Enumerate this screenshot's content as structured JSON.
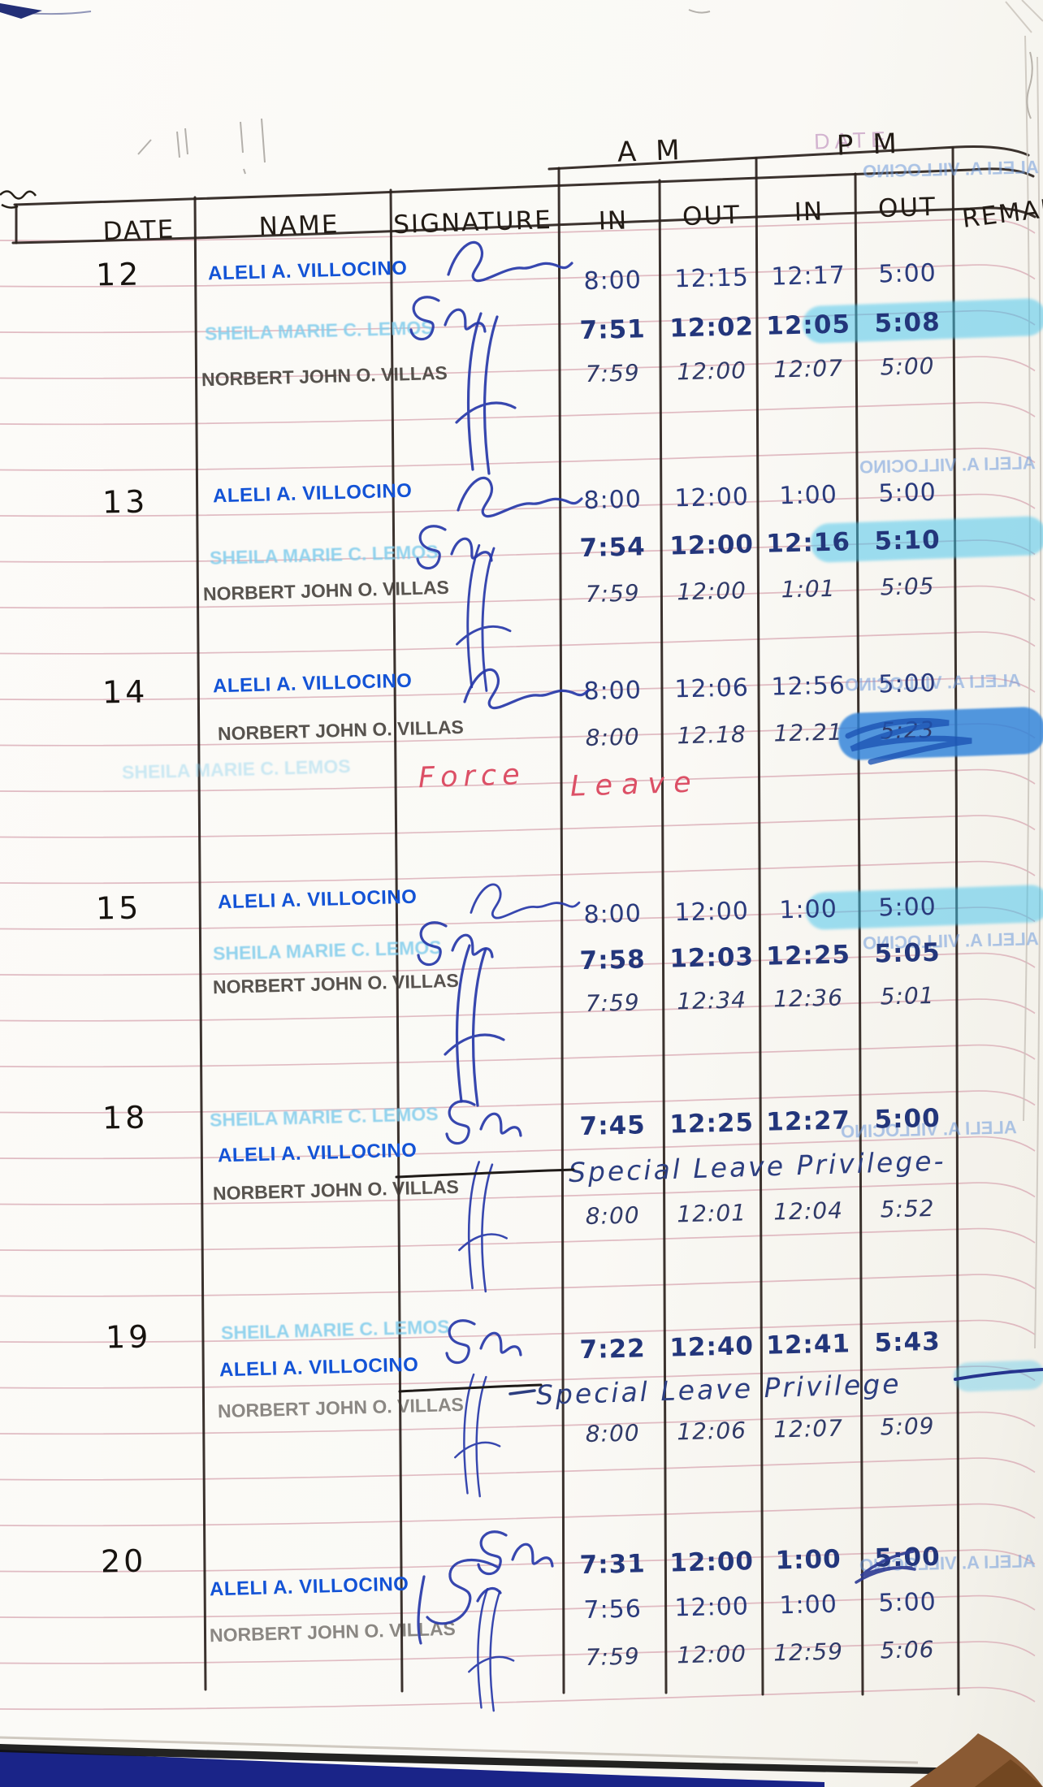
{
  "page": {
    "printed_date_label": "DATE",
    "table_header": {
      "date": "DATE",
      "name": "NAME",
      "signature": "SIGNATURE",
      "am": "AM",
      "pm": "PM",
      "in_am": "IN",
      "out_am": "OUT",
      "in_pm": "IN",
      "out_pm": "OUT",
      "remarks": "REMARKS"
    },
    "bleed_stamp": "ALELI A. VILLOCINO",
    "ink_colors": {
      "stamp_blue": "#1353d6",
      "stamp_cyan": "#82cdec",
      "stamp_black": "#413c37",
      "pen_blue": "#2a3b7d",
      "red_pen": "#dc5066",
      "highlighter": "#41c3ec",
      "rule_pink": "#d9abb5",
      "table_line": "#2a211c",
      "cover_blue": "#1a2488",
      "desk_brown": "#8a5a33"
    },
    "entries": [
      {
        "date": "12",
        "rows": [
          {
            "name": "ALELI A. VILLOCINO",
            "am_in": "8:00",
            "am_out": "12:15",
            "pm_in": "12:17",
            "pm_out": "5:00"
          },
          {
            "name": "SHEILA MARIE C. LEMOS",
            "am_in": "7:51",
            "am_out": "12:02",
            "pm_in": "12:05",
            "pm_out": "5:08"
          },
          {
            "name": "NORBERT JOHN O. VILLAS",
            "am_in": "7:59",
            "am_out": "12:00",
            "pm_in": "12:07",
            "pm_out": "5:00"
          }
        ]
      },
      {
        "date": "13",
        "rows": [
          {
            "name": "ALELI A. VILLOCINO",
            "am_in": "8:00",
            "am_out": "12:00",
            "pm_in": "1:00",
            "pm_out": "5:00"
          },
          {
            "name": "SHEILA MARIE C. LEMOS",
            "am_in": "7:54",
            "am_out": "12:00",
            "pm_in": "12:16",
            "pm_out": "5:10"
          },
          {
            "name": "NORBERT JOHN O. VILLAS",
            "am_in": "7:59",
            "am_out": "12:00",
            "pm_in": "1:01",
            "pm_out": "5:05"
          }
        ]
      },
      {
        "date": "14",
        "rows": [
          {
            "name": "ALELI A. VILLOCINO",
            "am_in": "8:00",
            "am_out": "12:06",
            "pm_in": "12:56",
            "pm_out": "5:00"
          },
          {
            "name": "NORBERT JOHN O. VILLAS",
            "am_in": "8:00",
            "am_out": "12.18",
            "pm_in": "12.21",
            "pm_out": "5:23"
          },
          {
            "name": "SHEILA MARIE C. LEMOS",
            "remark_left": "Force",
            "remark_right": "Leave"
          }
        ]
      },
      {
        "date": "15",
        "rows": [
          {
            "name": "ALELI A. VILLOCINO",
            "am_in": "8:00",
            "am_out": "12:00",
            "pm_in": "1:00",
            "pm_out": "5:00"
          },
          {
            "name": "SHEILA MARIE C. LEMOS",
            "am_in": "7:58",
            "am_out": "12:03",
            "pm_in": "12:25",
            "pm_out": "5:05"
          },
          {
            "name": "NORBERT JOHN O. VILLAS",
            "am_in": "7:59",
            "am_out": "12:34",
            "pm_in": "12:36",
            "pm_out": "5:01"
          }
        ]
      },
      {
        "date": "18",
        "rows": [
          {
            "name": "SHEILA MARIE C. LEMOS",
            "am_in": "7:45",
            "am_out": "12:25",
            "pm_in": "12:27",
            "pm_out": "5:00"
          },
          {
            "name": "ALELI A. VILLOCINO",
            "note": "Special Leave Privilege-"
          },
          {
            "name": "NORBERT JOHN O. VILLAS",
            "am_in": "8:00",
            "am_out": "12:01",
            "pm_in": "12:04",
            "pm_out": "5:52"
          }
        ]
      },
      {
        "date": "19",
        "rows": [
          {
            "name": "SHEILA MARIE C. LEMOS",
            "am_in": "7:22",
            "am_out": "12:40",
            "pm_in": "12:41",
            "pm_out": "5:43"
          },
          {
            "name": "ALELI A. VILLOCINO",
            "note": "Special Leave Privilege"
          },
          {
            "name": "NORBERT JOHN O. VILLAS",
            "am_in": "8:00",
            "am_out": "12:06",
            "pm_in": "12:07",
            "pm_out": "5:09"
          }
        ]
      },
      {
        "date": "20",
        "rows": [
          {
            "name": "",
            "am_in": "7:31",
            "am_out": "12:00",
            "pm_in": "1:00",
            "pm_out": "5:00"
          },
          {
            "name": "ALELI A. VILLOCINO",
            "am_in": "7:56",
            "am_out": "12:00",
            "pm_in": "1:00",
            "pm_out": "5:00"
          },
          {
            "name": "NORBERT JOHN O. VILLAS",
            "am_in": "7:59",
            "am_out": "12:00",
            "pm_in": "12:59",
            "pm_out": "5:06"
          }
        ]
      }
    ]
  }
}
